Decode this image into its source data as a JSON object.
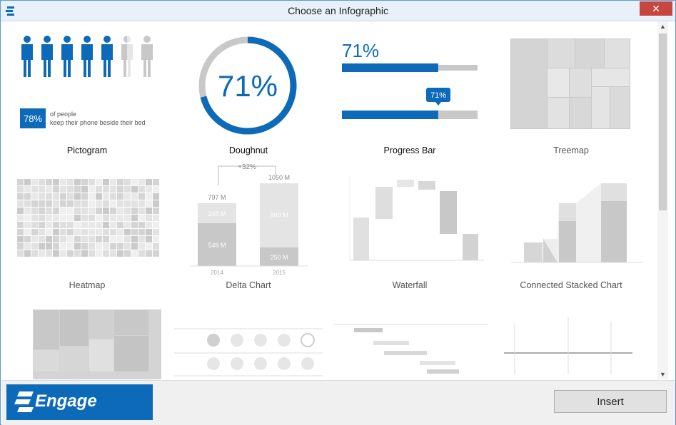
{
  "window": {
    "title": "Choose an Infographic",
    "close_glyph": "✕"
  },
  "gallery": {
    "pictogram": {
      "label": "Pictogram",
      "percent": "78%",
      "caption_line1": "of people",
      "caption_line2": "keep their phone beside their bed",
      "fill_fraction": 0.78
    },
    "doughnut": {
      "label": "Doughnut",
      "value_text": "71%",
      "fill_fraction": 0.71
    },
    "progress_bar": {
      "label": "Progress Bar",
      "value_text": "71%",
      "badge_text": "71%",
      "fill_fraction": 0.71
    },
    "treemap": {
      "label": "Treemap"
    },
    "heatmap": {
      "label": "Heatmap"
    },
    "delta_chart": {
      "label": "Delta Chart",
      "delta_text": "+32%",
      "bar1_total": "797 M",
      "bar1_top": "248 M",
      "bar1_bottom": "549 M",
      "bar1_year": "2014",
      "bar2_total": "1050 M",
      "bar2_top": "800 M",
      "bar2_bottom": "250 M",
      "bar2_year": "2015"
    },
    "waterfall": {
      "label": "Waterfall"
    },
    "connected_stacked": {
      "label": "Connected Stacked Chart"
    }
  },
  "scrollbar": {
    "up": "▲",
    "down": "▼"
  },
  "footer": {
    "logo_text": "Engage",
    "insert_label": "Insert"
  },
  "colors": {
    "accent": "#0d6ab8",
    "gray": "#c8c8c8",
    "light_gray": "#e6e6e6"
  }
}
